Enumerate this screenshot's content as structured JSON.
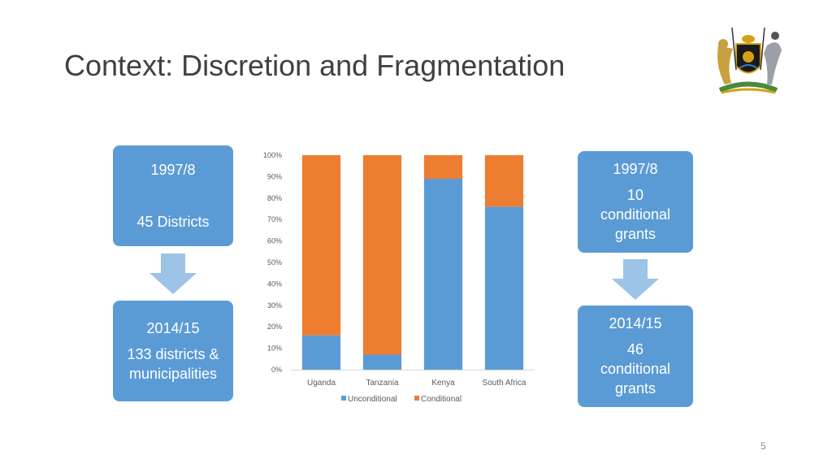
{
  "slide": {
    "title": "Context: Discretion and Fragmentation",
    "page_number": "5"
  },
  "left": {
    "top_box": {
      "year": "1997/8",
      "text": "45 Districts"
    },
    "bottom_box": {
      "year": "2014/15",
      "line1": "133 districts &",
      "line2": "municipalities"
    }
  },
  "right": {
    "top_box": {
      "year": "1997/8",
      "line1": "10",
      "line2": "conditional",
      "line3": "grants"
    },
    "bottom_box": {
      "year": "2014/15",
      "line1": "46",
      "line2": "conditional",
      "line3": "grants"
    }
  },
  "colors": {
    "box": "#5b9bd5",
    "arrow": "#9dc3e6",
    "unconditional": "#5b9bd5",
    "conditional": "#ed7d31"
  },
  "chart_data": {
    "type": "bar",
    "stacked": true,
    "categories": [
      "Uganda",
      "Tanzania",
      "Kenya",
      "South Africa"
    ],
    "series": [
      {
        "name": "Unconditional",
        "values": [
          16,
          7,
          89,
          76
        ]
      },
      {
        "name": "Conditional",
        "values": [
          84,
          93,
          11,
          24
        ]
      }
    ],
    "y_ticks": [
      "0%",
      "10%",
      "20%",
      "30%",
      "40%",
      "50%",
      "60%",
      "70%",
      "80%",
      "90%",
      "100%"
    ],
    "ylim": [
      0,
      100
    ],
    "legend": {
      "position": "bottom",
      "entries": [
        "Unconditional",
        "Conditional"
      ]
    },
    "grid": false
  }
}
